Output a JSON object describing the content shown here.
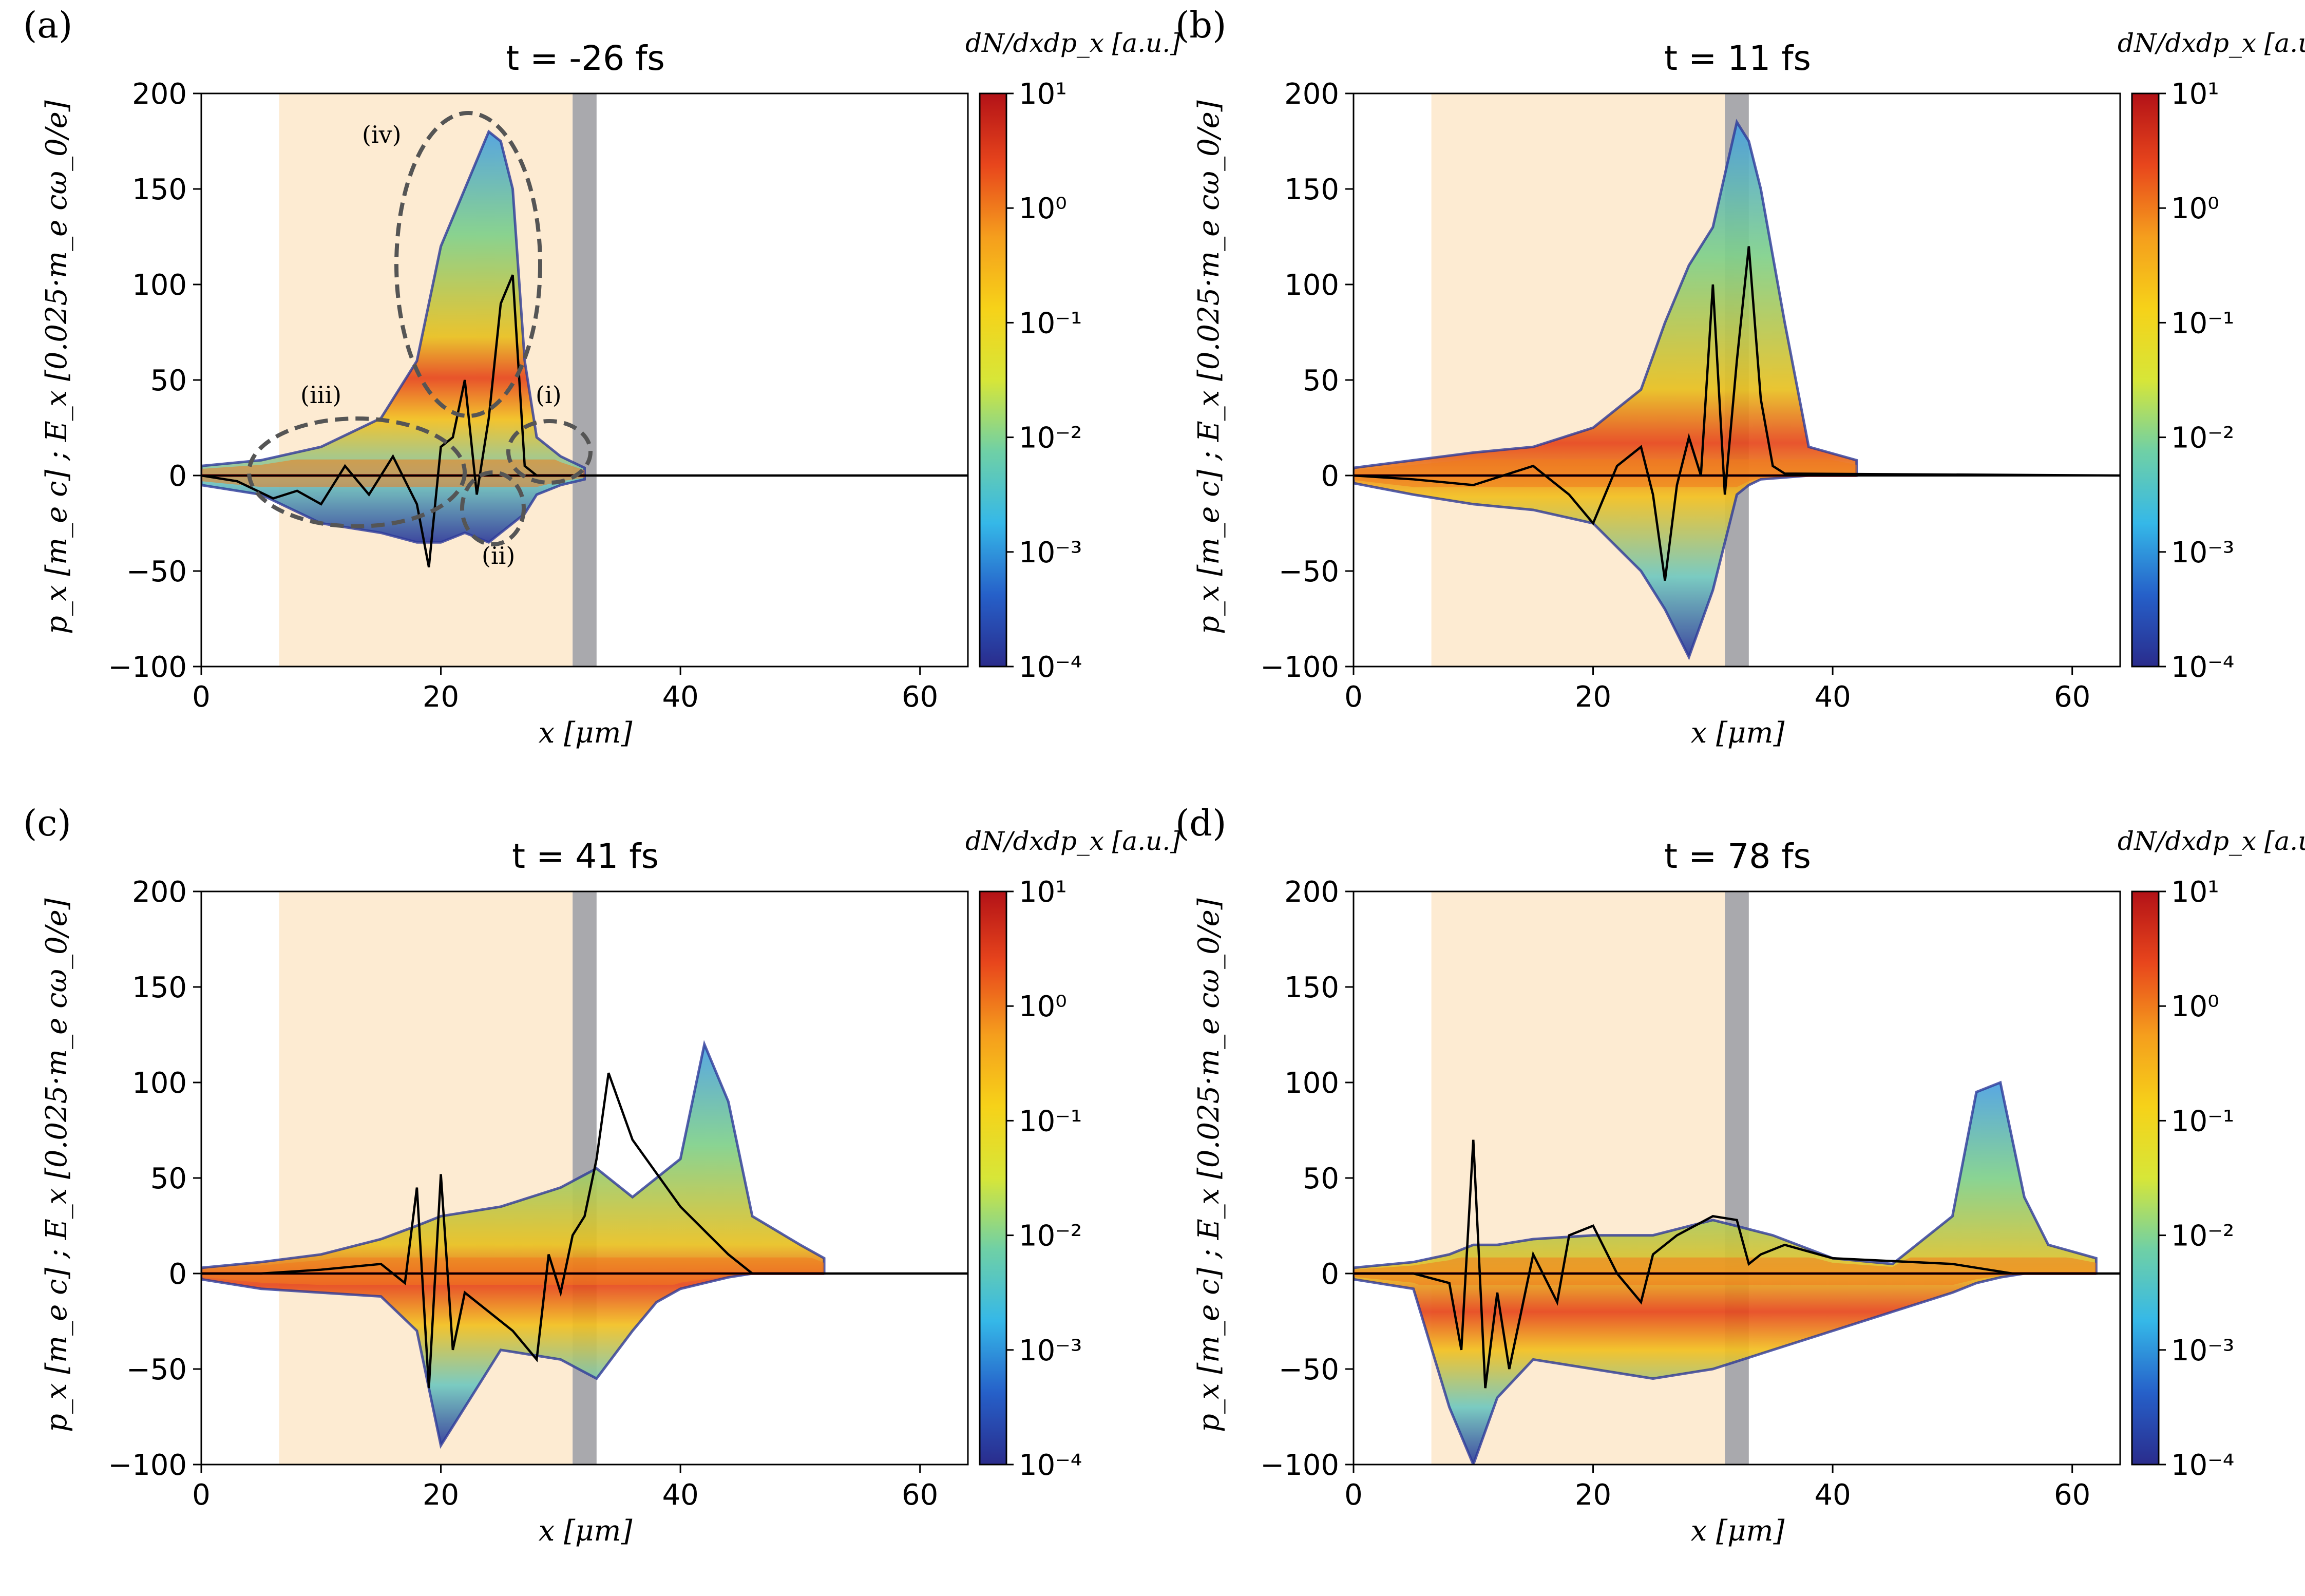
{
  "figure": {
    "description_free": true
  },
  "chart_data": [
    {
      "type": "heatmap",
      "panel_label": "(a)",
      "title": "t = -26 fs",
      "xlabel": "x [μm]",
      "ylabel": "p_x [m_e c] ; E_x [0.025·m_e cω_0/e]",
      "xlim": [
        0,
        64
      ],
      "ylim": [
        -100,
        200
      ],
      "xticks": [
        "0",
        "20",
        "40",
        "60"
      ],
      "yticks": [
        "−100",
        "−50",
        "0",
        "50",
        "100",
        "150",
        "200"
      ],
      "colorbar": {
        "label": "dN/dxdp_x [a.u.]",
        "ticks": [
          "10⁻⁴",
          "10⁻³",
          "10⁻²",
          "10⁻¹",
          "10⁰",
          "10¹"
        ],
        "range": [
          -4,
          1
        ]
      },
      "shaded_region": [
        6.5,
        31
      ],
      "target_region": [
        31,
        33
      ],
      "envelope": {
        "x": [
          0,
          5,
          10,
          15,
          18,
          20,
          22,
          24,
          25,
          26,
          27,
          28,
          30,
          32
        ],
        "upper": [
          5,
          8,
          15,
          30,
          60,
          120,
          150,
          180,
          175,
          150,
          60,
          20,
          10,
          4
        ],
        "lower": [
          -5,
          -10,
          -25,
          -30,
          -35,
          -35,
          -30,
          -35,
          -30,
          -25,
          -20,
          -10,
          -5,
          -2
        ]
      },
      "field_line": {
        "x": [
          0,
          3,
          6,
          8,
          10,
          12,
          14,
          16,
          18,
          19,
          20,
          21,
          22,
          23,
          24,
          25,
          26,
          27,
          28,
          30,
          64
        ],
        "y": [
          0,
          -3,
          -12,
          -8,
          -15,
          5,
          -10,
          10,
          -15,
          -48,
          15,
          20,
          50,
          -10,
          30,
          90,
          105,
          5,
          0,
          0,
          0
        ]
      },
      "annotations": [
        "(i)",
        "(ii)",
        "(iii)",
        "(iv)"
      ]
    },
    {
      "type": "heatmap",
      "panel_label": "(b)",
      "title": "t = 11 fs",
      "xlabel": "x [μm]",
      "ylabel": "p_x [m_e c] ; E_x [0.025·m_e cω_0/e]",
      "xlim": [
        0,
        64
      ],
      "ylim": [
        -100,
        200
      ],
      "xticks": [
        "0",
        "20",
        "40",
        "60"
      ],
      "yticks": [
        "−100",
        "−50",
        "0",
        "50",
        "100",
        "150",
        "200"
      ],
      "colorbar": {
        "label": "dN/dxdp_x [a.u.]",
        "ticks": [
          "10⁻⁴",
          "10⁻³",
          "10⁻²",
          "10⁻¹",
          "10⁰",
          "10¹"
        ],
        "range": [
          -4,
          1
        ]
      },
      "shaded_region": [
        6.5,
        31
      ],
      "target_region": [
        31,
        33
      ],
      "envelope": {
        "x": [
          0,
          5,
          10,
          15,
          20,
          24,
          26,
          28,
          30,
          32,
          33,
          34,
          36,
          38,
          42
        ],
        "upper": [
          4,
          8,
          12,
          15,
          25,
          45,
          80,
          110,
          130,
          185,
          175,
          150,
          80,
          15,
          8
        ],
        "lower": [
          -4,
          -10,
          -15,
          -18,
          -25,
          -50,
          -70,
          -95,
          -60,
          -10,
          -5,
          -2,
          -1,
          0,
          0
        ]
      },
      "field_line": {
        "x": [
          0,
          5,
          10,
          15,
          18,
          20,
          22,
          24,
          25,
          26,
          27,
          28,
          29,
          30,
          31,
          32,
          33,
          34,
          35,
          36,
          64
        ],
        "y": [
          0,
          -2,
          -5,
          5,
          -10,
          -25,
          5,
          15,
          -10,
          -55,
          -5,
          20,
          0,
          100,
          -10,
          60,
          120,
          40,
          5,
          1,
          0
        ]
      }
    },
    {
      "type": "heatmap",
      "panel_label": "(c)",
      "title": "t = 41 fs",
      "xlabel": "x [μm]",
      "ylabel": "p_x [m_e c] ; E_x [0.025·m_e cω_0/e]",
      "xlim": [
        0,
        64
      ],
      "ylim": [
        -100,
        200
      ],
      "xticks": [
        "0",
        "20",
        "40",
        "60"
      ],
      "yticks": [
        "−100",
        "−50",
        "0",
        "50",
        "100",
        "150",
        "200"
      ],
      "colorbar": {
        "label": "dN/dxdp_x [a.u.]",
        "ticks": [
          "10⁻⁴",
          "10⁻³",
          "10⁻²",
          "10⁻¹",
          "10⁰",
          "10¹"
        ],
        "range": [
          -4,
          1
        ]
      },
      "shaded_region": [
        6.5,
        31
      ],
      "target_region": [
        31,
        33
      ],
      "envelope": {
        "x": [
          0,
          5,
          10,
          15,
          18,
          20,
          25,
          30,
          33,
          36,
          38,
          40,
          42,
          44,
          46,
          50,
          52
        ],
        "upper": [
          3,
          6,
          10,
          18,
          25,
          30,
          35,
          45,
          55,
          40,
          50,
          60,
          120,
          90,
          30,
          15,
          8
        ],
        "lower": [
          -3,
          -8,
          -10,
          -12,
          -30,
          -90,
          -40,
          -45,
          -55,
          -30,
          -15,
          -8,
          -5,
          -2,
          0,
          0,
          0
        ]
      },
      "field_line": {
        "x": [
          0,
          5,
          10,
          15,
          17,
          18,
          19,
          20,
          21,
          22,
          24,
          26,
          28,
          29,
          30,
          31,
          32,
          33,
          34,
          36,
          40,
          44,
          46,
          64
        ],
        "y": [
          0,
          0,
          2,
          5,
          -5,
          45,
          -60,
          52,
          -40,
          -10,
          -20,
          -30,
          -45,
          10,
          -10,
          20,
          30,
          60,
          105,
          70,
          35,
          10,
          0,
          0
        ]
      }
    },
    {
      "type": "heatmap",
      "panel_label": "(d)",
      "title": "t = 78 fs",
      "xlabel": "x [μm]",
      "ylabel": "p_x [m_e c] ; E_x [0.025·m_e cω_0/e]",
      "xlim": [
        0,
        64
      ],
      "ylim": [
        -100,
        200
      ],
      "xticks": [
        "0",
        "20",
        "40",
        "60"
      ],
      "yticks": [
        "−100",
        "−50",
        "0",
        "50",
        "100",
        "150",
        "200"
      ],
      "colorbar": {
        "label": "dN/dxdp_x [a.u.]",
        "ticks": [
          "10⁻⁴",
          "10⁻³",
          "10⁻²",
          "10⁻¹",
          "10⁰",
          "10¹"
        ],
        "range": [
          -4,
          1
        ]
      },
      "shaded_region": [
        6.5,
        31
      ],
      "target_region": [
        31,
        33
      ],
      "envelope": {
        "x": [
          0,
          5,
          8,
          10,
          12,
          15,
          20,
          25,
          30,
          35,
          40,
          45,
          50,
          52,
          54,
          56,
          58,
          62
        ],
        "upper": [
          3,
          6,
          10,
          15,
          15,
          18,
          20,
          20,
          28,
          20,
          8,
          5,
          30,
          95,
          100,
          40,
          15,
          8
        ],
        "lower": [
          -3,
          -8,
          -70,
          -100,
          -65,
          -45,
          -50,
          -55,
          -50,
          -40,
          -30,
          -20,
          -10,
          -5,
          -2,
          0,
          0,
          0
        ]
      },
      "field_line": {
        "x": [
          0,
          5,
          8,
          9,
          10,
          11,
          12,
          13,
          15,
          17,
          18,
          20,
          22,
          24,
          25,
          27,
          30,
          32,
          33,
          34,
          36,
          40,
          50,
          55,
          58,
          64
        ],
        "y": [
          0,
          0,
          -5,
          -40,
          70,
          -60,
          -10,
          -50,
          10,
          -15,
          20,
          25,
          0,
          -15,
          10,
          20,
          30,
          28,
          5,
          10,
          15,
          8,
          5,
          0,
          0,
          0
        ]
      }
    }
  ]
}
